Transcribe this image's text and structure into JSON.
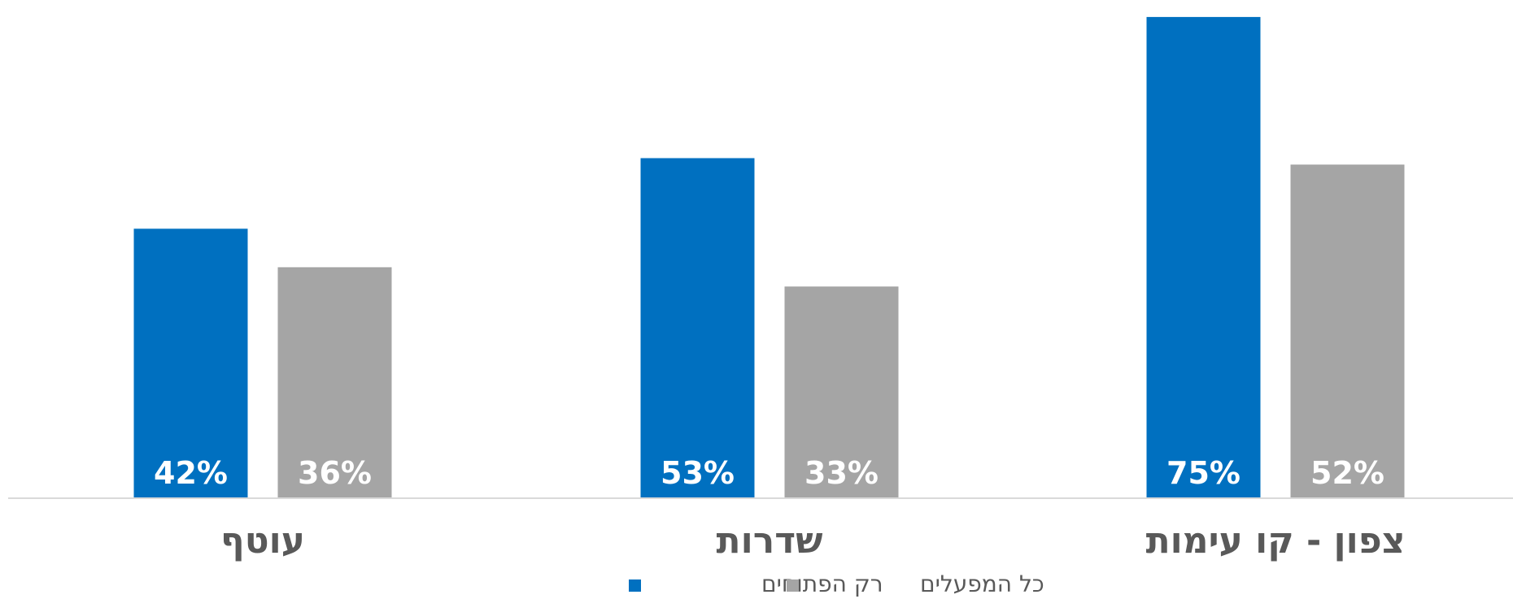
{
  "chart_data": {
    "type": "bar",
    "categories": [
      "עוטף",
      "שדרות",
      "צפון - קו עימות"
    ],
    "series": [
      {
        "name": "רק הפתוחים",
        "color": "#0070C0",
        "values": [
          42,
          53,
          75
        ],
        "labels": [
          "42%",
          "53%",
          "75%"
        ]
      },
      {
        "name": "כל המפעלים",
        "color": "#A5A5A5",
        "values": [
          36,
          33,
          52
        ],
        "labels": [
          "36%",
          "33%",
          "52%"
        ]
      }
    ],
    "ylim": [
      0,
      76
    ],
    "y_unit": "%",
    "grid": false,
    "legend_position": "bottom-center",
    "axis_color": "#D9D9D9",
    "category_label_color": "#595959"
  }
}
